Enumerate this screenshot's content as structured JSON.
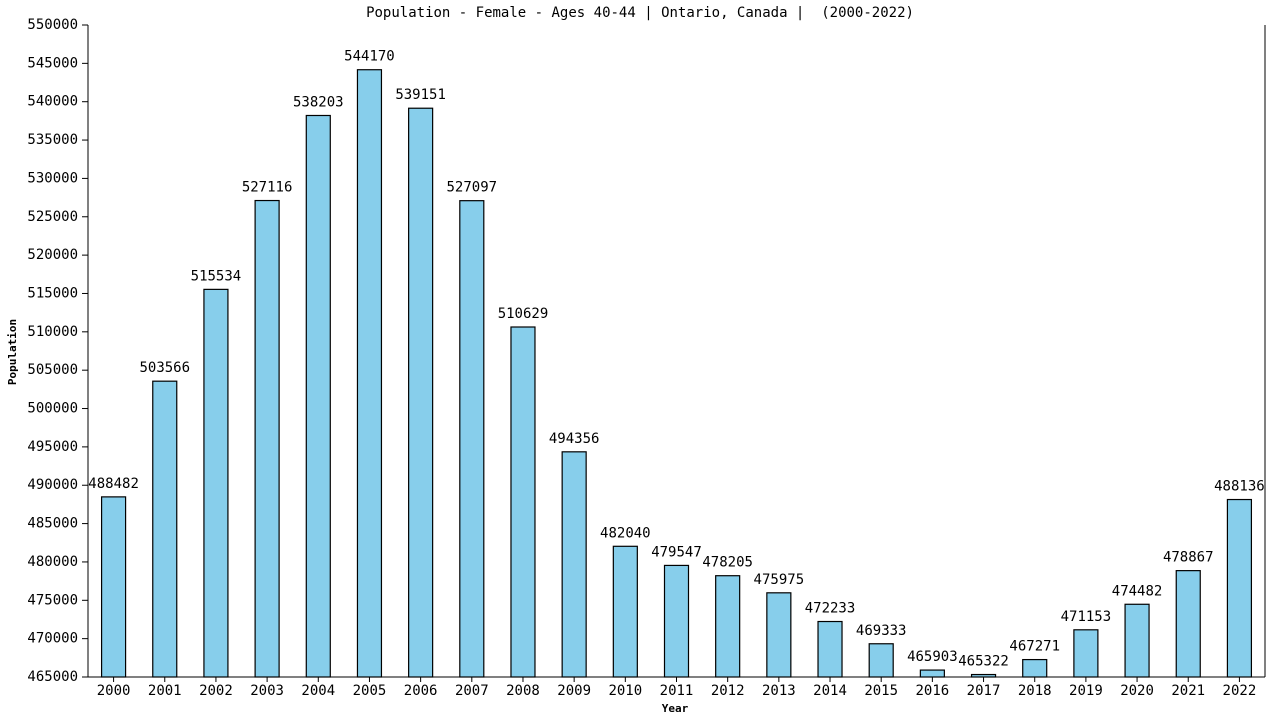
{
  "chart_data": {
    "type": "bar",
    "title": "Population - Female - Ages 40-44 | Ontario, Canada |  (2000-2022)",
    "x_label": "Year",
    "y_label": "Population",
    "categories": [
      "2000",
      "2001",
      "2002",
      "2003",
      "2004",
      "2005",
      "2006",
      "2007",
      "2008",
      "2009",
      "2010",
      "2011",
      "2012",
      "2013",
      "2014",
      "2015",
      "2016",
      "2017",
      "2018",
      "2019",
      "2020",
      "2021",
      "2022"
    ],
    "values": [
      488482,
      503566,
      515534,
      527116,
      538203,
      544170,
      539151,
      527097,
      510629,
      494356,
      482040,
      479547,
      478205,
      475975,
      472233,
      469333,
      465903,
      465322,
      467271,
      471153,
      474482,
      478867,
      488136
    ],
    "color": "#87ceeb",
    "ylim": [
      465000,
      550000
    ],
    "yticks": [
      465000,
      470000,
      475000,
      480000,
      485000,
      490000,
      495000,
      500000,
      505000,
      510000,
      515000,
      520000,
      525000,
      530000,
      535000,
      540000,
      545000,
      550000
    ]
  }
}
